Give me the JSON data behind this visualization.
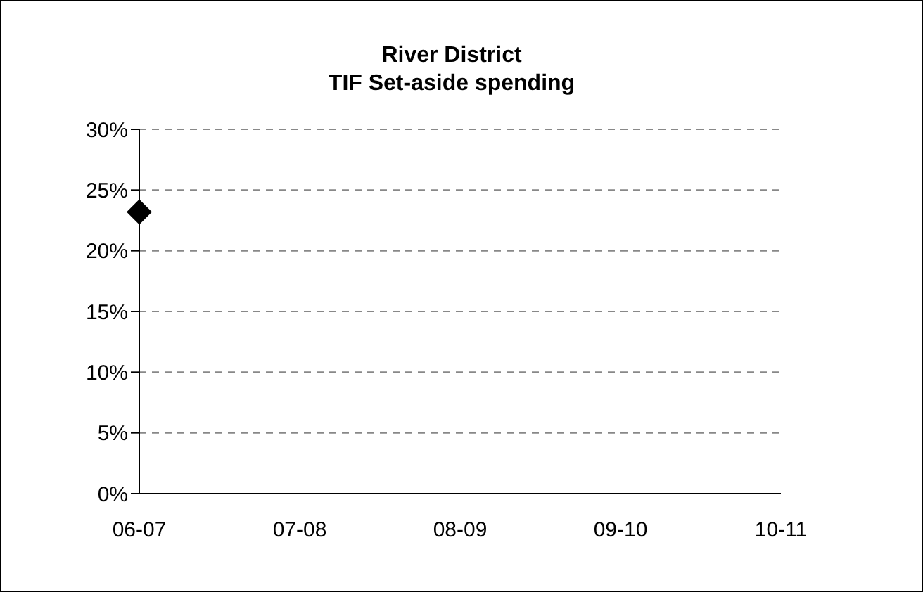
{
  "chart_data": {
    "type": "line",
    "title": "River District\nTIF Set-aside spending",
    "categories": [
      "06-07",
      "07-08",
      "08-09",
      "09-10",
      "10-11"
    ],
    "series": [
      {
        "color": "#000000",
        "values": [
          23.2,
          null,
          null,
          null,
          null
        ]
      }
    ],
    "ylim": [
      0,
      30
    ],
    "yticks": [
      {
        "value": 0,
        "label": "0%"
      },
      {
        "value": 5,
        "label": "5%"
      },
      {
        "value": 10,
        "label": "10%"
      },
      {
        "value": 15,
        "label": "15%"
      },
      {
        "value": 20,
        "label": "20%"
      },
      {
        "value": 25,
        "label": "25%"
      },
      {
        "value": 30,
        "label": "30%"
      }
    ],
    "grid": "y",
    "marker": "diamond",
    "legend": false
  }
}
